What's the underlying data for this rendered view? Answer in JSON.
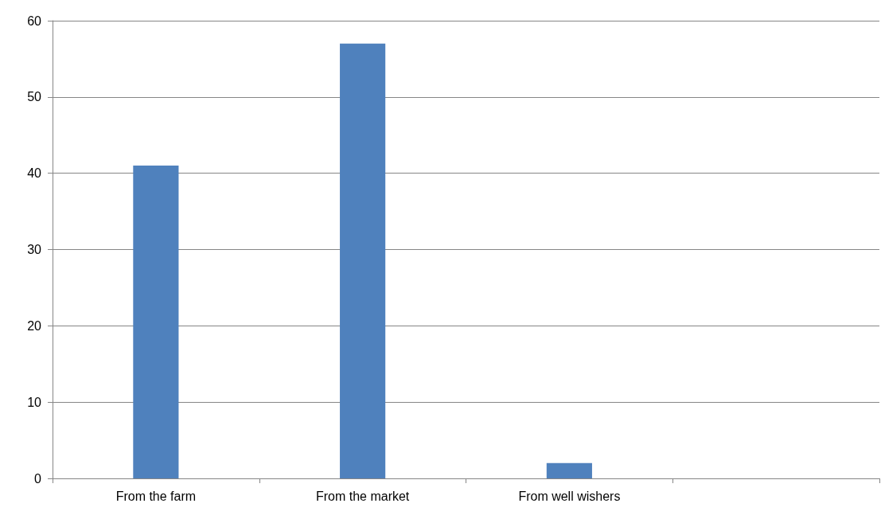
{
  "chart_data": {
    "type": "bar",
    "categories": [
      "From the farm",
      "From the market",
      "From well wishers",
      null
    ],
    "values": [
      41,
      57,
      2,
      null
    ],
    "color": "#4f81bd",
    "ylim": [
      0,
      60
    ],
    "yticks": [
      0,
      10,
      20,
      30,
      40,
      50,
      60
    ],
    "grid": "y"
  }
}
